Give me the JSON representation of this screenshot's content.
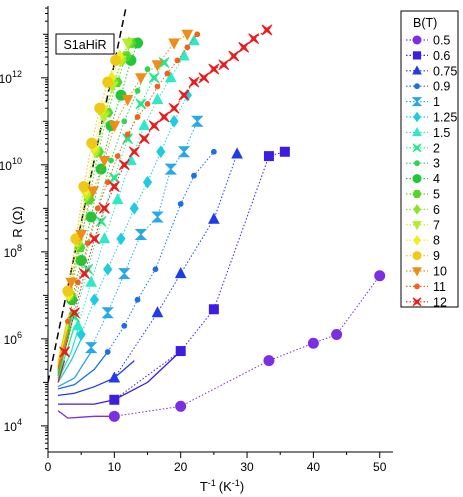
{
  "chart_data": {
    "type": "line",
    "sample_label": "S1aHiR",
    "xlabel": {
      "base": "T",
      "base_sup": "-1",
      "unit": "(K",
      "unit_sup": "-1",
      "close": ")"
    },
    "ylabel": "R (Ω)",
    "xlim": [
      0,
      52
    ],
    "ylim_log10": [
      3.4,
      13.65
    ],
    "y_scale": "log",
    "x_ticks": [
      0,
      10,
      20,
      30,
      40,
      50
    ],
    "y_ticks": [
      {
        "exp": 4,
        "base": "10",
        "sup": "4"
      },
      {
        "exp": 6,
        "base": "10",
        "sup": "6"
      },
      {
        "exp": 8,
        "base": "10",
        "sup": "8"
      },
      {
        "exp": 10,
        "base": "10",
        "sup": "10"
      },
      {
        "exp": 12,
        "base": "10",
        "sup": "12"
      }
    ],
    "legend_title": "B(T)",
    "legend_position": "right",
    "reference_line": {
      "style": "dashed",
      "from": [
        0,
        5.0
      ],
      "to": [
        11.8,
        13.65
      ]
    },
    "series": [
      {
        "name": "0.5",
        "color": "#7b2fe0",
        "marker": "circle",
        "fit": [
          [
            1.5,
            4.35
          ],
          [
            3,
            4.18
          ],
          [
            5,
            4.2
          ],
          [
            7,
            4.22
          ],
          [
            10,
            4.22
          ]
        ],
        "points": [
          [
            10,
            4.22
          ],
          [
            20,
            4.45
          ],
          [
            33.3,
            5.5
          ],
          [
            40,
            5.9
          ],
          [
            43.5,
            6.1
          ],
          [
            50,
            7.45
          ]
        ]
      },
      {
        "name": "0.6",
        "color": "#3c1ee0",
        "marker": "square",
        "fit": [
          [
            1.5,
            4.5
          ],
          [
            4,
            4.5
          ],
          [
            7,
            4.5
          ],
          [
            10,
            4.6
          ],
          [
            15,
            5.0
          ],
          [
            20,
            5.72
          ]
        ],
        "points": [
          [
            10,
            4.6
          ],
          [
            20,
            5.72
          ],
          [
            25,
            6.68
          ],
          [
            33.3,
            10.2
          ],
          [
            35.7,
            10.3
          ]
        ]
      },
      {
        "name": "0.75",
        "color": "#1f3ce6",
        "marker": "triangle",
        "fit": [
          [
            1.5,
            4.7
          ],
          [
            4,
            4.75
          ],
          [
            7,
            4.9
          ],
          [
            10,
            5.1
          ],
          [
            13,
            5.5
          ]
        ],
        "points": [
          [
            10,
            5.1
          ],
          [
            16.5,
            6.6
          ],
          [
            20,
            7.5
          ],
          [
            25,
            8.75
          ],
          [
            28.5,
            10.25
          ]
        ]
      },
      {
        "name": "0.9",
        "color": "#1c6fe8",
        "marker": "dot",
        "fit": [
          [
            1.5,
            4.85
          ],
          [
            4,
            4.95
          ],
          [
            7,
            5.3
          ],
          [
            9,
            5.7
          ]
        ],
        "points": [
          [
            9,
            5.7
          ],
          [
            11.5,
            6.3
          ],
          [
            13.5,
            6.9
          ],
          [
            16.2,
            7.6
          ],
          [
            20,
            9.1
          ],
          [
            22,
            9.75
          ],
          [
            25,
            10.3
          ]
        ]
      },
      {
        "name": "1",
        "color": "#2aa7e8",
        "marker": "hourglass",
        "fit": [
          [
            1.5,
            4.9
          ],
          [
            4,
            5.1
          ],
          [
            6.5,
            5.7
          ]
        ],
        "points": [
          [
            6.5,
            5.8
          ],
          [
            9,
            6.6
          ],
          [
            11.5,
            7.5
          ],
          [
            14,
            8.4
          ],
          [
            16.5,
            8.8
          ],
          [
            18.5,
            9.9
          ],
          [
            20.5,
            10.3
          ],
          [
            22.5,
            11.0
          ]
        ]
      },
      {
        "name": "1.25",
        "color": "#1ecce0",
        "marker": "diamond",
        "fit": [
          [
            1.5,
            5.0
          ],
          [
            3.5,
            5.5
          ],
          [
            5,
            6.0
          ]
        ],
        "points": [
          [
            5,
            6.1
          ],
          [
            7,
            6.9
          ],
          [
            9,
            7.6
          ],
          [
            11,
            8.3
          ],
          [
            13,
            9.0
          ],
          [
            15,
            9.6
          ],
          [
            17,
            10.3
          ],
          [
            19,
            11.0
          ],
          [
            21,
            11.6
          ]
        ]
      },
      {
        "name": "1.5",
        "color": "#2fe8c8",
        "marker": "triangle",
        "fit": [
          [
            1.5,
            5.05
          ],
          [
            3.5,
            5.7
          ],
          [
            4.5,
            6.2
          ]
        ],
        "points": [
          [
            4.5,
            6.3
          ],
          [
            6.5,
            7.3
          ],
          [
            8.5,
            8.3
          ],
          [
            10.5,
            9.2
          ],
          [
            12.5,
            10.1
          ],
          [
            14.5,
            10.9
          ],
          [
            16.5,
            11.5
          ],
          [
            18.5,
            12.0
          ],
          [
            20.5,
            12.5
          ],
          [
            22,
            12.85
          ]
        ]
      },
      {
        "name": "2",
        "color": "#22e890",
        "marker": "cross",
        "fit": [
          [
            1.5,
            5.1
          ],
          [
            3,
            5.8
          ],
          [
            4,
            6.3
          ]
        ],
        "points": [
          [
            4,
            6.5
          ],
          [
            6,
            7.6
          ],
          [
            8,
            8.7
          ],
          [
            10,
            9.7
          ],
          [
            12,
            10.6
          ],
          [
            14,
            11.4
          ],
          [
            16,
            12.0
          ],
          [
            17.5,
            12.35
          ]
        ]
      },
      {
        "name": "3",
        "color": "#2dd655",
        "marker": "dot",
        "fit": [
          [
            1.5,
            5.15
          ],
          [
            3,
            6.0
          ],
          [
            3.8,
            6.5
          ]
        ],
        "points": [
          [
            3.8,
            6.6
          ],
          [
            5.5,
            7.8
          ],
          [
            7.5,
            9.0
          ],
          [
            9.5,
            10.1
          ],
          [
            11.5,
            11.0
          ],
          [
            13.5,
            11.7
          ],
          [
            15,
            12.2
          ]
        ]
      },
      {
        "name": "4",
        "color": "#20c838",
        "marker": "circle",
        "fit": [
          [
            1.5,
            5.2
          ],
          [
            3,
            6.1
          ],
          [
            3.6,
            6.6
          ]
        ],
        "points": [
          [
            3.6,
            6.9
          ],
          [
            5,
            7.8
          ],
          [
            6.5,
            8.8
          ],
          [
            8,
            9.9
          ],
          [
            9.5,
            10.9
          ],
          [
            11,
            11.6
          ],
          [
            12.5,
            12.4
          ],
          [
            13.5,
            12.8
          ]
        ]
      },
      {
        "name": "5",
        "color": "#52d62a",
        "marker": "hexagon",
        "fit": [
          [
            1.5,
            5.25
          ],
          [
            3,
            6.2
          ],
          [
            3.4,
            6.6
          ]
        ],
        "points": [
          [
            3.4,
            7.0
          ],
          [
            4.8,
            8.1
          ],
          [
            6.2,
            9.2
          ],
          [
            7.6,
            10.3
          ],
          [
            9,
            11.2
          ],
          [
            10.4,
            11.9
          ],
          [
            11.8,
            12.5
          ],
          [
            12.5,
            12.8
          ]
        ]
      },
      {
        "name": "6",
        "color": "#86e62a",
        "marker": "diamond",
        "fit": [
          [
            1.5,
            5.3
          ],
          [
            3,
            6.3
          ],
          [
            3.3,
            6.6
          ]
        ],
        "points": [
          [
            3.3,
            7.0
          ],
          [
            4.6,
            8.2
          ],
          [
            6,
            9.3
          ],
          [
            7.3,
            10.3
          ],
          [
            8.7,
            11.2
          ],
          [
            10,
            11.9
          ],
          [
            11.2,
            12.4
          ],
          [
            12.2,
            12.8
          ]
        ]
      },
      {
        "name": "7",
        "color": "#b4ee2a",
        "marker": "triangle-down",
        "fit": [
          [
            1.5,
            5.35
          ],
          [
            3,
            6.3
          ],
          [
            3.2,
            6.6
          ]
        ],
        "points": [
          [
            3.2,
            7.0
          ],
          [
            4.5,
            8.2
          ],
          [
            5.8,
            9.3
          ],
          [
            7.1,
            10.3
          ],
          [
            8.4,
            11.1
          ],
          [
            9.7,
            11.8
          ],
          [
            11,
            12.4
          ],
          [
            12,
            12.8
          ]
        ]
      },
      {
        "name": "8",
        "color": "#eeee1e",
        "marker": "diamond",
        "fit": [
          [
            1.5,
            5.4
          ],
          [
            3,
            6.4
          ]
        ],
        "points": [
          [
            3.1,
            7.0
          ],
          [
            4.4,
            8.3
          ],
          [
            5.7,
            9.4
          ],
          [
            7,
            10.4
          ],
          [
            8.3,
            11.3
          ],
          [
            9.6,
            12.0
          ],
          [
            10.8,
            12.5
          ]
        ]
      },
      {
        "name": "9",
        "color": "#f0c818",
        "marker": "circle",
        "fit": [
          [
            1.5,
            5.45
          ],
          [
            3,
            6.5
          ]
        ],
        "points": [
          [
            3,
            7.1
          ],
          [
            4.2,
            8.3
          ],
          [
            5.4,
            9.5
          ],
          [
            6.6,
            10.5
          ],
          [
            7.8,
            11.3
          ],
          [
            9,
            11.9
          ],
          [
            10.2,
            12.4
          ]
        ]
      },
      {
        "name": "10",
        "color": "#f08c18",
        "marker": "triangle-down",
        "fit": [
          [
            1.5,
            5.35
          ],
          [
            3,
            6.2
          ]
        ],
        "points": [
          [
            3.5,
            7.3
          ],
          [
            5,
            8.4
          ],
          [
            6.8,
            9.4
          ],
          [
            8.5,
            10.1
          ],
          [
            10,
            10.9
          ],
          [
            12,
            11.5
          ],
          [
            14,
            12.0
          ],
          [
            16.5,
            12.3
          ],
          [
            19,
            12.8
          ],
          [
            21,
            13.0
          ]
        ]
      },
      {
        "name": "11",
        "color": "#f0621e",
        "marker": "dot",
        "fit": [
          [
            1.5,
            5.3
          ],
          [
            3,
            6.0
          ]
        ],
        "points": [
          [
            3,
            6.4
          ],
          [
            4.5,
            7.3
          ],
          [
            6,
            8.2
          ],
          [
            7.5,
            9.0
          ],
          [
            9,
            9.6
          ],
          [
            10.5,
            10.2
          ],
          [
            12,
            10.7
          ],
          [
            13.5,
            11.1
          ],
          [
            15,
            11.4
          ],
          [
            16.5,
            11.8
          ],
          [
            18,
            12.1
          ],
          [
            19.5,
            12.4
          ],
          [
            21,
            12.7
          ],
          [
            22.5,
            13.0
          ]
        ]
      },
      {
        "name": "12",
        "color": "#e81e1e",
        "marker": "cross",
        "fit": [
          [
            1.5,
            5.0
          ],
          [
            2.5,
            5.5
          ]
        ],
        "points": [
          [
            2.5,
            5.7
          ],
          [
            4,
            6.6
          ],
          [
            5.5,
            7.5
          ],
          [
            7,
            8.3
          ],
          [
            8.5,
            9.0
          ],
          [
            10,
            9.5
          ],
          [
            11.5,
            10.0
          ],
          [
            13,
            10.3
          ],
          [
            14.5,
            10.6
          ],
          [
            16,
            10.9
          ],
          [
            17.5,
            11.1
          ],
          [
            19,
            11.3
          ],
          [
            20.5,
            11.6
          ],
          [
            22,
            11.9
          ],
          [
            23.5,
            12.0
          ],
          [
            25,
            12.2
          ],
          [
            26.5,
            12.3
          ],
          [
            28,
            12.5
          ],
          [
            29.5,
            12.7
          ],
          [
            31,
            12.9
          ],
          [
            33,
            13.1
          ]
        ]
      }
    ]
  }
}
